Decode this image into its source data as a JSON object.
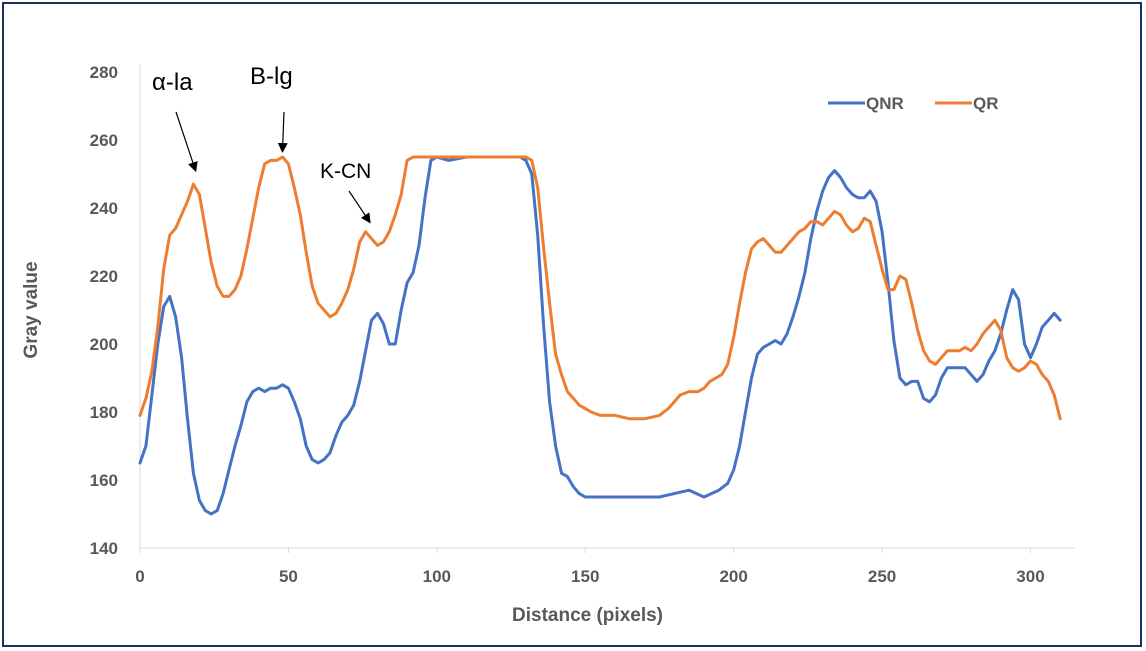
{
  "chart_data": {
    "type": "line",
    "title": "",
    "xlabel": "Distance (pixels)",
    "ylabel": "Gray value",
    "xlim": [
      0,
      315
    ],
    "ylim": [
      140,
      280
    ],
    "xticks": [
      0,
      50,
      100,
      150,
      200,
      250,
      300
    ],
    "yticks": [
      140,
      160,
      180,
      200,
      220,
      240,
      260,
      280
    ],
    "grid": false,
    "legend_position": "top-right",
    "series": [
      {
        "name": "QNR",
        "color": "#4472C4",
        "points": [
          [
            0,
            165
          ],
          [
            2,
            170
          ],
          [
            4,
            185
          ],
          [
            6,
            200
          ],
          [
            8,
            211
          ],
          [
            10,
            214
          ],
          [
            12,
            208
          ],
          [
            14,
            196
          ],
          [
            16,
            178
          ],
          [
            18,
            162
          ],
          [
            20,
            154
          ],
          [
            22,
            151
          ],
          [
            24,
            150
          ],
          [
            26,
            151
          ],
          [
            28,
            156
          ],
          [
            30,
            163
          ],
          [
            32,
            170
          ],
          [
            34,
            176
          ],
          [
            36,
            183
          ],
          [
            38,
            186
          ],
          [
            40,
            187
          ],
          [
            42,
            186
          ],
          [
            44,
            187
          ],
          [
            46,
            187
          ],
          [
            48,
            188
          ],
          [
            50,
            187
          ],
          [
            52,
            183
          ],
          [
            54,
            178
          ],
          [
            56,
            170
          ],
          [
            58,
            166
          ],
          [
            60,
            165
          ],
          [
            62,
            166
          ],
          [
            64,
            168
          ],
          [
            66,
            173
          ],
          [
            68,
            177
          ],
          [
            70,
            179
          ],
          [
            72,
            182
          ],
          [
            74,
            189
          ],
          [
            76,
            198
          ],
          [
            78,
            207
          ],
          [
            80,
            209
          ],
          [
            82,
            206
          ],
          [
            84,
            200
          ],
          [
            86,
            200
          ],
          [
            88,
            210
          ],
          [
            90,
            218
          ],
          [
            92,
            221
          ],
          [
            94,
            229
          ],
          [
            96,
            243
          ],
          [
            98,
            254
          ],
          [
            100,
            255
          ],
          [
            104,
            254
          ],
          [
            110,
            255
          ],
          [
            116,
            255
          ],
          [
            122,
            255
          ],
          [
            128,
            255
          ],
          [
            130,
            254
          ],
          [
            132,
            250
          ],
          [
            134,
            232
          ],
          [
            136,
            205
          ],
          [
            138,
            183
          ],
          [
            140,
            170
          ],
          [
            142,
            162
          ],
          [
            144,
            161
          ],
          [
            146,
            158
          ],
          [
            148,
            156
          ],
          [
            150,
            155
          ],
          [
            155,
            155
          ],
          [
            160,
            155
          ],
          [
            165,
            155
          ],
          [
            170,
            155
          ],
          [
            175,
            155
          ],
          [
            180,
            156
          ],
          [
            185,
            157
          ],
          [
            190,
            155
          ],
          [
            195,
            157
          ],
          [
            198,
            159
          ],
          [
            200,
            163
          ],
          [
            202,
            170
          ],
          [
            204,
            180
          ],
          [
            206,
            190
          ],
          [
            208,
            197
          ],
          [
            210,
            199
          ],
          [
            212,
            200
          ],
          [
            214,
            201
          ],
          [
            216,
            200
          ],
          [
            218,
            203
          ],
          [
            220,
            208
          ],
          [
            222,
            214
          ],
          [
            224,
            221
          ],
          [
            226,
            231
          ],
          [
            228,
            239
          ],
          [
            230,
            245
          ],
          [
            232,
            249
          ],
          [
            234,
            251
          ],
          [
            236,
            249
          ],
          [
            238,
            246
          ],
          [
            240,
            244
          ],
          [
            242,
            243
          ],
          [
            244,
            243
          ],
          [
            246,
            245
          ],
          [
            248,
            242
          ],
          [
            250,
            233
          ],
          [
            252,
            218
          ],
          [
            254,
            201
          ],
          [
            256,
            190
          ],
          [
            258,
            188
          ],
          [
            260,
            189
          ],
          [
            262,
            189
          ],
          [
            264,
            184
          ],
          [
            266,
            183
          ],
          [
            268,
            185
          ],
          [
            270,
            190
          ],
          [
            272,
            193
          ],
          [
            274,
            193
          ],
          [
            276,
            193
          ],
          [
            278,
            193
          ],
          [
            280,
            191
          ],
          [
            282,
            189
          ],
          [
            284,
            191
          ],
          [
            286,
            195
          ],
          [
            288,
            198
          ],
          [
            290,
            203
          ],
          [
            292,
            210
          ],
          [
            294,
            216
          ],
          [
            296,
            213
          ],
          [
            298,
            200
          ],
          [
            300,
            196
          ],
          [
            302,
            200
          ],
          [
            304,
            205
          ],
          [
            306,
            207
          ],
          [
            308,
            209
          ],
          [
            310,
            207
          ]
        ]
      },
      {
        "name": "QR",
        "color": "#ED7D31",
        "points": [
          [
            0,
            179
          ],
          [
            2,
            184
          ],
          [
            4,
            192
          ],
          [
            6,
            205
          ],
          [
            8,
            222
          ],
          [
            10,
            232
          ],
          [
            12,
            234
          ],
          [
            14,
            238
          ],
          [
            16,
            242
          ],
          [
            18,
            247
          ],
          [
            20,
            244
          ],
          [
            22,
            234
          ],
          [
            24,
            224
          ],
          [
            26,
            217
          ],
          [
            28,
            214
          ],
          [
            30,
            214
          ],
          [
            32,
            216
          ],
          [
            34,
            220
          ],
          [
            36,
            228
          ],
          [
            38,
            237
          ],
          [
            40,
            246
          ],
          [
            42,
            253
          ],
          [
            44,
            254
          ],
          [
            46,
            254
          ],
          [
            48,
            255
          ],
          [
            50,
            253
          ],
          [
            52,
            246
          ],
          [
            54,
            238
          ],
          [
            56,
            227
          ],
          [
            58,
            217
          ],
          [
            60,
            212
          ],
          [
            62,
            210
          ],
          [
            64,
            208
          ],
          [
            66,
            209
          ],
          [
            68,
            212
          ],
          [
            70,
            216
          ],
          [
            72,
            222
          ],
          [
            74,
            230
          ],
          [
            76,
            233
          ],
          [
            78,
            231
          ],
          [
            80,
            229
          ],
          [
            82,
            230
          ],
          [
            84,
            233
          ],
          [
            86,
            238
          ],
          [
            88,
            244
          ],
          [
            90,
            254
          ],
          [
            92,
            255
          ],
          [
            100,
            255
          ],
          [
            110,
            255
          ],
          [
            120,
            255
          ],
          [
            130,
            255
          ],
          [
            132,
            254
          ],
          [
            134,
            246
          ],
          [
            136,
            228
          ],
          [
            138,
            212
          ],
          [
            140,
            197
          ],
          [
            142,
            191
          ],
          [
            144,
            186
          ],
          [
            146,
            184
          ],
          [
            148,
            182
          ],
          [
            150,
            181
          ],
          [
            152,
            180
          ],
          [
            155,
            179
          ],
          [
            160,
            179
          ],
          [
            165,
            178
          ],
          [
            170,
            178
          ],
          [
            175,
            179
          ],
          [
            178,
            181
          ],
          [
            180,
            183
          ],
          [
            182,
            185
          ],
          [
            185,
            186
          ],
          [
            188,
            186
          ],
          [
            190,
            187
          ],
          [
            192,
            189
          ],
          [
            194,
            190
          ],
          [
            196,
            191
          ],
          [
            198,
            194
          ],
          [
            200,
            202
          ],
          [
            202,
            212
          ],
          [
            204,
            221
          ],
          [
            206,
            228
          ],
          [
            208,
            230
          ],
          [
            210,
            231
          ],
          [
            212,
            229
          ],
          [
            214,
            227
          ],
          [
            216,
            227
          ],
          [
            218,
            229
          ],
          [
            220,
            231
          ],
          [
            222,
            233
          ],
          [
            224,
            234
          ],
          [
            226,
            236
          ],
          [
            228,
            236
          ],
          [
            230,
            235
          ],
          [
            232,
            237
          ],
          [
            234,
            239
          ],
          [
            236,
            238
          ],
          [
            238,
            235
          ],
          [
            240,
            233
          ],
          [
            242,
            234
          ],
          [
            244,
            237
          ],
          [
            246,
            236
          ],
          [
            248,
            229
          ],
          [
            250,
            222
          ],
          [
            252,
            216
          ],
          [
            254,
            216
          ],
          [
            256,
            220
          ],
          [
            258,
            219
          ],
          [
            260,
            212
          ],
          [
            262,
            204
          ],
          [
            264,
            198
          ],
          [
            266,
            195
          ],
          [
            268,
            194
          ],
          [
            270,
            196
          ],
          [
            272,
            198
          ],
          [
            274,
            198
          ],
          [
            276,
            198
          ],
          [
            278,
            199
          ],
          [
            280,
            198
          ],
          [
            282,
            200
          ],
          [
            284,
            203
          ],
          [
            286,
            205
          ],
          [
            288,
            207
          ],
          [
            290,
            204
          ],
          [
            292,
            196
          ],
          [
            294,
            193
          ],
          [
            296,
            192
          ],
          [
            298,
            193
          ],
          [
            300,
            195
          ],
          [
            302,
            194
          ],
          [
            304,
            191
          ],
          [
            306,
            189
          ],
          [
            308,
            185
          ],
          [
            310,
            178
          ]
        ]
      }
    ],
    "annotations": [
      {
        "text": "α-la",
        "x": 18,
        "y": 247
      },
      {
        "text": "B-lg",
        "x": 48,
        "y": 255
      },
      {
        "text": "K-CN",
        "x": 76,
        "y": 233
      }
    ]
  }
}
